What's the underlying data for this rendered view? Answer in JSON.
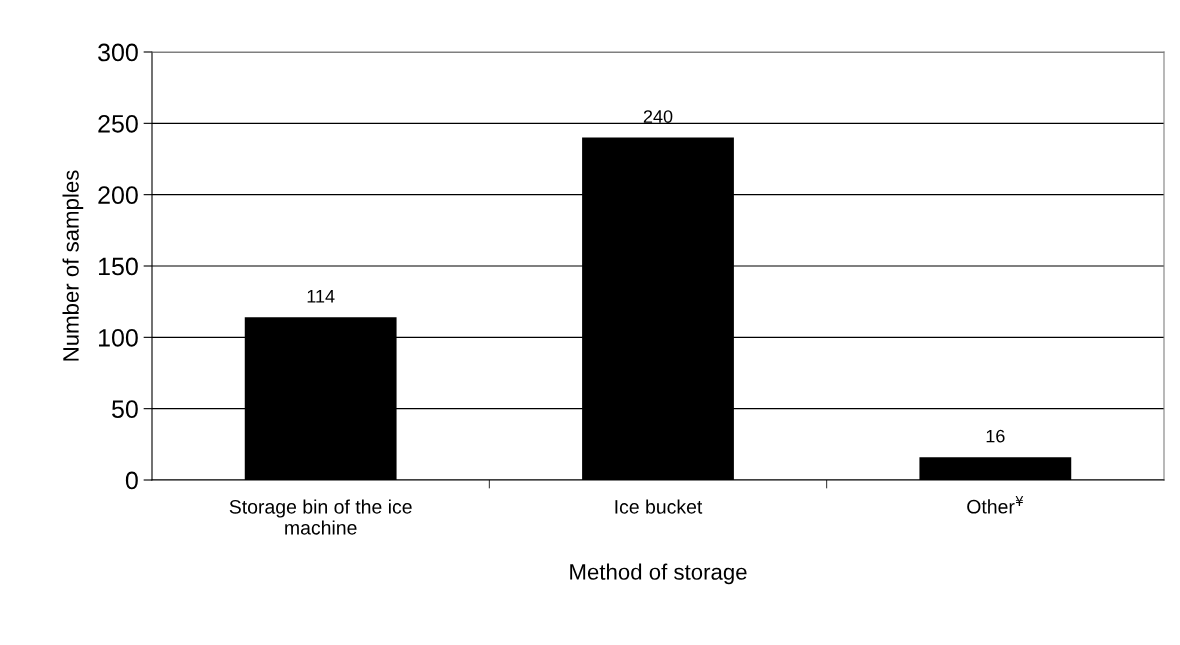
{
  "chart_data": {
    "type": "bar",
    "xlabel": "Method of storage",
    "ylabel": "Number of samples",
    "categories": [
      "Storage bin of the ice\nmachine",
      "Ice bucket",
      "Other$^{¥}$"
    ],
    "values": [
      114,
      240,
      16
    ],
    "color": "#000000",
    "ylim": [
      0,
      300
    ],
    "yticks": [
      0,
      50,
      100,
      150,
      200,
      250,
      300
    ],
    "grid": "y",
    "data_labels": true
  }
}
